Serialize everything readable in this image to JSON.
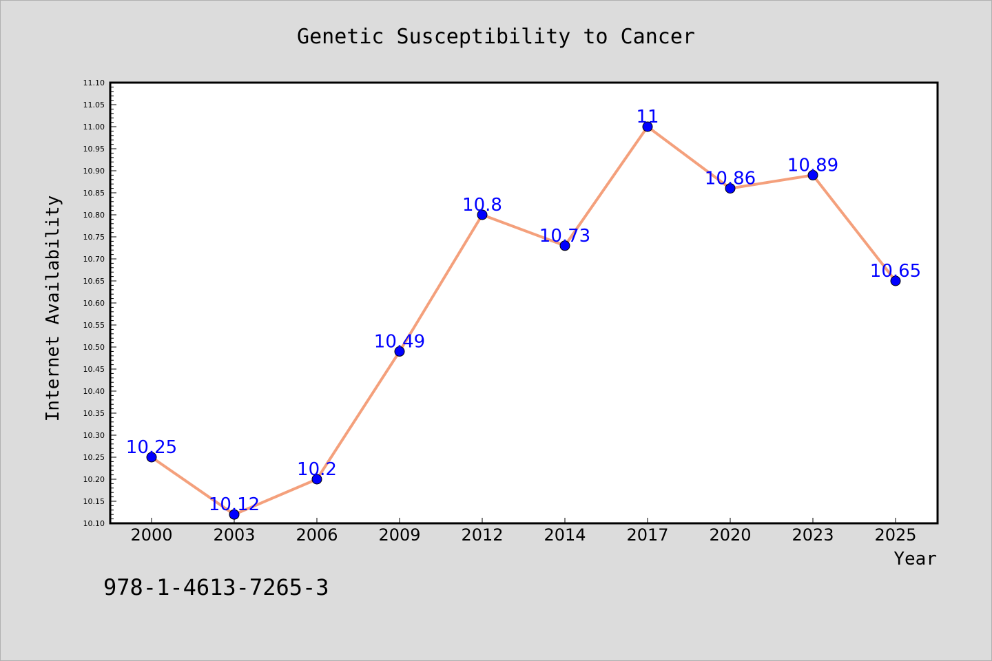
{
  "chart_data": {
    "type": "line",
    "title": "Genetic Susceptibility to Cancer",
    "xlabel": "Year",
    "ylabel": "Internet Availability",
    "categories": [
      "2000",
      "2003",
      "2006",
      "2009",
      "2012",
      "2014",
      "2017",
      "2020",
      "2023",
      "2025"
    ],
    "values": [
      10.25,
      10.12,
      10.2,
      10.49,
      10.8,
      10.73,
      11,
      10.86,
      10.89,
      10.65
    ],
    "data_labels": [
      "10.25",
      "10.12",
      "10.2",
      "10.49",
      "10.8",
      "10.73",
      "11",
      "10.86",
      "10.89",
      "10.65"
    ],
    "ylim": [
      10.1,
      11.1
    ],
    "yticks": [
      "10.10",
      "10.15",
      "10.20",
      "10.25",
      "10.30",
      "10.35",
      "10.40",
      "10.45",
      "10.50",
      "10.55",
      "10.60",
      "10.65",
      "10.70",
      "10.75",
      "10.80",
      "10.85",
      "10.90",
      "10.95",
      "11.00",
      "11.05",
      "11.10"
    ],
    "grid": false,
    "legend": "none",
    "colors": {
      "line": "#f4a07c",
      "marker": "#0000ff",
      "label": "#0000ff"
    }
  },
  "footer": {
    "code": "978-1-4613-7265-3"
  }
}
